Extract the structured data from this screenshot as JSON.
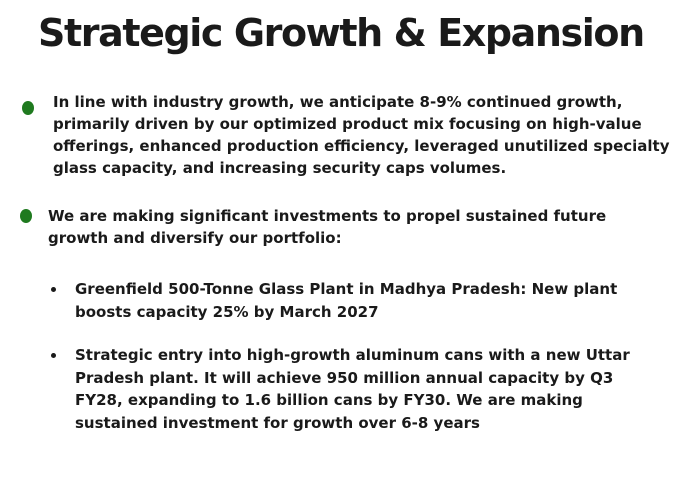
{
  "title": "Strategic Growth & Expansion",
  "bullets": [
    {
      "text": "In line with industry growth, we anticipate 8-9% continued growth, primarily driven by our optimized product mix focusing on high-value offerings, enhanced production efficiency, leveraged unutilized specialty glass capacity, and increasing security caps volumes."
    },
    {
      "text": "We are making significant investments to propel sustained future growth and diversify our portfolio:"
    }
  ],
  "sub_bullets": [
    {
      "text": "Greenfield 500-Tonne Glass Plant in Madhya Pradesh: New plant boosts capacity 25% by March 2027"
    },
    {
      "text": "Strategic entry into high-growth aluminum cans with a new Uttar Pradesh plant. It will achieve 950 million annual capacity by Q3 FY28, expanding to 1.6 billion cans by FY30. We are making sustained investment for growth over 6-8 years"
    }
  ],
  "colors": {
    "bullet_green": "#1f7a1f",
    "text": "#1a1a1a",
    "background": "#ffffff"
  }
}
